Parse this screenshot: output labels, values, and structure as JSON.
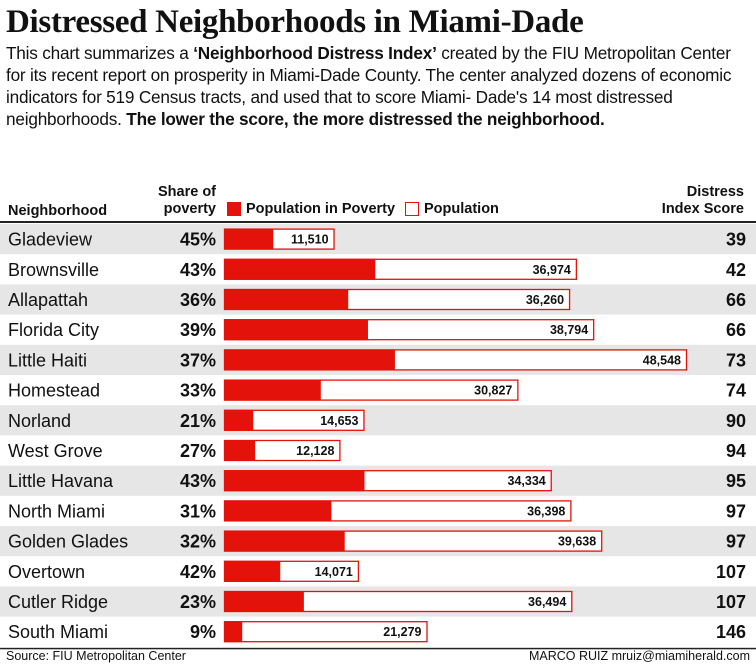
{
  "title": "Distressed Neighborhoods in Miami-Dade",
  "description": {
    "text1": "This chart summarizes a ",
    "bold1": "‘Neighborhood Distress Index’",
    "text2": " created by the FIU Metropolitan Center for its recent report on prosperity in Miami-Dade County. The center analyzed  dozens of economic indicators for 519 Census tracts, and used that to score Miami- Dade's 14 most distressed neighborhoods. ",
    "bold2": "The lower the score, the more distressed the neighborhood."
  },
  "headers": {
    "neighborhood": "Neighborhood",
    "share_line1": "Share of",
    "share_line2": "poverty",
    "score_line1": "Distress",
    "score_line2": "Index Score"
  },
  "legend": {
    "poverty": "Population in Poverty",
    "population": "Population"
  },
  "colors": {
    "poverty": "#e3120b",
    "row_band": "#e6e6e6"
  },
  "source": "Source: FIU Metropolitan Center",
  "credit": "MARCO RUIZ mruiz@miamiherald.com",
  "chart_data": {
    "type": "bar",
    "categories": [
      "Gladeview",
      "Brownsville",
      "Allapattah",
      "Florida City",
      "Little Haiti",
      "Homestead",
      "Norland",
      "West Grove",
      "Little Havana",
      "North Miami",
      "Golden Glades",
      "Overtown",
      "Cutler Ridge",
      "South Miami"
    ],
    "share_labels": [
      "45%",
      "43%",
      "36%",
      "39%",
      "37%",
      "33%",
      "21%",
      "27%",
      "43%",
      "31%",
      "32%",
      "42%",
      "23%",
      "9%"
    ],
    "share_of_poverty": [
      45,
      43,
      36,
      39,
      37,
      33,
      21,
      27,
      43,
      31,
      32,
      42,
      23,
      9
    ],
    "population_labels": [
      "11,510",
      "36,974",
      "36,260",
      "38,794",
      "48,548",
      "30,827",
      "14,653",
      "12,128",
      "34,334",
      "36,398",
      "39,638",
      "14,071",
      "36,494",
      "21,279"
    ],
    "population": [
      11510,
      36974,
      36260,
      38794,
      48548,
      30827,
      14653,
      12128,
      34334,
      36398,
      39638,
      14071,
      36494,
      21279
    ],
    "distress_index_score": [
      39,
      42,
      66,
      66,
      73,
      74,
      90,
      94,
      95,
      97,
      97,
      107,
      107,
      146
    ]
  }
}
